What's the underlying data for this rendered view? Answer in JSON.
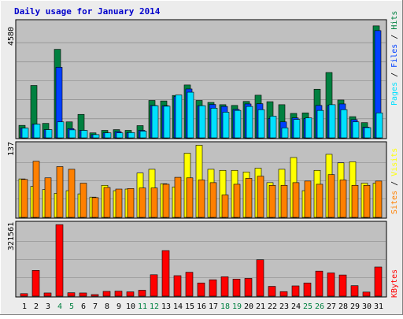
{
  "title": "Daily usage for January 2014",
  "colors": {
    "panel_bg": "#c0c0c0",
    "frame_bg": "#ececec",
    "title": "#0000cc",
    "hits": "#008040",
    "files": "#0040ff",
    "pages": "#00e0ff",
    "visits": "#ffff00",
    "sites": "#ff8000",
    "kbytes": "#ff0000",
    "weekend_day": "#008040",
    "weekday": "#000000"
  },
  "chart_data": [
    {
      "type": "bar",
      "ylabel_max": "4580",
      "ymax": 4580,
      "legend": [
        "Pages",
        "Files",
        "Hits"
      ],
      "categories": [
        "1",
        "2",
        "3",
        "4",
        "5",
        "6",
        "7",
        "8",
        "9",
        "10",
        "11",
        "12",
        "13",
        "14",
        "15",
        "16",
        "17",
        "18",
        "19",
        "20",
        "21",
        "22",
        "23",
        "24",
        "25",
        "26",
        "27",
        "28",
        "29",
        "30",
        "31"
      ],
      "weekend_days": [
        "4",
        "5",
        "11",
        "12",
        "18",
        "19",
        "25",
        "26"
      ],
      "series": [
        {
          "name": "Hits",
          "values": [
            500,
            2100,
            580,
            3550,
            640,
            940,
            200,
            300,
            330,
            300,
            490,
            1500,
            1480,
            1700,
            2120,
            1500,
            1420,
            1330,
            1300,
            1460,
            1710,
            1450,
            1330,
            980,
            1000,
            1950,
            2620,
            1520,
            850,
            610,
            4490
          ]
        },
        {
          "name": "Files",
          "values": [
            390,
            550,
            330,
            2830,
            370,
            300,
            130,
            200,
            250,
            210,
            300,
            1300,
            1290,
            1660,
            1960,
            1290,
            1340,
            1260,
            1140,
            1360,
            1370,
            780,
            640,
            800,
            780,
            1300,
            1300,
            1360,
            730,
            430,
            4300
          ]
        },
        {
          "name": "Pages",
          "values": [
            390,
            550,
            330,
            640,
            320,
            300,
            130,
            200,
            200,
            210,
            270,
            1290,
            1270,
            1720,
            1830,
            1290,
            1190,
            1030,
            1100,
            1260,
            1130,
            870,
            400,
            740,
            800,
            1100,
            1330,
            1130,
            640,
            410,
            1000
          ]
        }
      ]
    },
    {
      "type": "bar",
      "ylabel_max": "137",
      "ymax": 137,
      "legend": [
        "Sites",
        "Visits"
      ],
      "categories": [
        "1",
        "2",
        "3",
        "4",
        "5",
        "6",
        "7",
        "8",
        "9",
        "10",
        "11",
        "12",
        "13",
        "14",
        "15",
        "16",
        "17",
        "18",
        "19",
        "20",
        "21",
        "22",
        "23",
        "24",
        "25",
        "26",
        "27",
        "28",
        "29",
        "30",
        "31"
      ],
      "series": [
        {
          "name": "Visits",
          "values": [
            72,
            58,
            52,
            45,
            50,
            44,
            38,
            60,
            50,
            53,
            83,
            90,
            63,
            57,
            120,
            135,
            90,
            88,
            88,
            85,
            92,
            65,
            90,
            112,
            50,
            88,
            118,
            102,
            104,
            64,
            64
          ]
        },
        {
          "name": "Sites",
          "values": [
            71,
            105,
            74,
            95,
            90,
            64,
            37,
            56,
            53,
            54,
            55,
            55,
            62,
            75,
            74,
            70,
            65,
            42,
            62,
            73,
            77,
            60,
            60,
            65,
            68,
            62,
            80,
            70,
            60,
            60,
            68
          ]
        }
      ]
    },
    {
      "type": "bar",
      "ylabel_max": "321561",
      "ymax": 321561,
      "legend": [
        "KBytes"
      ],
      "categories": [
        "1",
        "2",
        "3",
        "4",
        "5",
        "6",
        "7",
        "8",
        "9",
        "10",
        "11",
        "12",
        "13",
        "14",
        "15",
        "16",
        "17",
        "18",
        "19",
        "20",
        "21",
        "22",
        "23",
        "24",
        "25",
        "26",
        "27",
        "28",
        "29",
        "30",
        "31"
      ],
      "series": [
        {
          "name": "KBytes",
          "values": [
            11000,
            113000,
            14000,
            314000,
            15000,
            14000,
            7000,
            21000,
            22000,
            19000,
            26000,
            94000,
            200000,
            90000,
            105000,
            58000,
            72000,
            85000,
            75000,
            78000,
            160000,
            43000,
            20000,
            45000,
            58000,
            110000,
            102000,
            93000,
            46000,
            18000,
            128000
          ]
        }
      ]
    }
  ]
}
